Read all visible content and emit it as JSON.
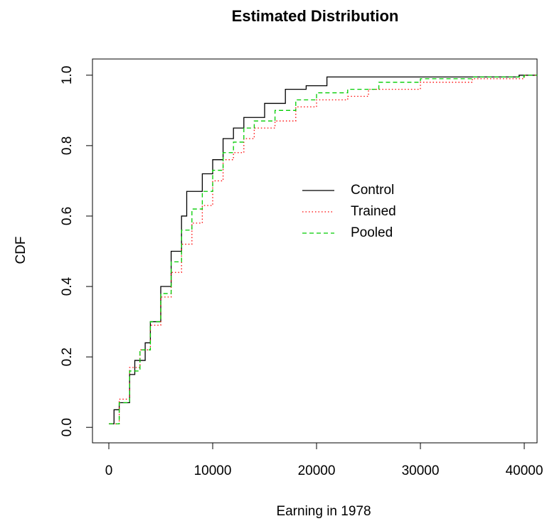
{
  "chart_data": {
    "type": "step",
    "title": "Estimated Distribution",
    "xlabel": "Earning in 1978",
    "ylabel": "CDF",
    "xlim": [
      -1575,
      41233
    ],
    "ylim": [
      -0.044,
      1.046
    ],
    "xticks": [
      0,
      10000,
      20000,
      30000,
      40000
    ],
    "yticks": [
      {
        "value": 0,
        "label": "0.0"
      },
      {
        "value": 0.2,
        "label": "0.2"
      },
      {
        "value": 0.4,
        "label": "0.4"
      },
      {
        "value": 0.6,
        "label": "0.6"
      },
      {
        "value": 0.8,
        "label": "0.8"
      },
      {
        "value": 1,
        "label": "1.0"
      }
    ],
    "legend_position": "center-right",
    "series": [
      {
        "name": "Control",
        "color": "#000000",
        "linestyle": "solid",
        "x": [
          0,
          500,
          1000,
          2000,
          2500,
          3500,
          4000,
          5000,
          6000,
          7000,
          7500,
          9000,
          10000,
          11000,
          12000,
          13000,
          15000,
          17000,
          19000,
          21000,
          39500
        ],
        "values": [
          0.01,
          0.05,
          0.07,
          0.15,
          0.19,
          0.24,
          0.3,
          0.4,
          0.5,
          0.6,
          0.67,
          0.72,
          0.76,
          0.82,
          0.85,
          0.88,
          0.92,
          0.96,
          0.97,
          0.995,
          1.0
        ]
      },
      {
        "name": "Trained",
        "color": "#ff0000",
        "linestyle": "dotted",
        "x": [
          0,
          1000,
          2000,
          3000,
          4000,
          5000,
          6000,
          7000,
          8000,
          9000,
          10000,
          11000,
          12000,
          13000,
          14000,
          16000,
          18000,
          20000,
          23000,
          25000,
          30000,
          35000,
          40000
        ],
        "values": [
          0.01,
          0.08,
          0.17,
          0.22,
          0.29,
          0.37,
          0.44,
          0.52,
          0.58,
          0.63,
          0.7,
          0.76,
          0.78,
          0.82,
          0.85,
          0.87,
          0.91,
          0.93,
          0.94,
          0.96,
          0.98,
          0.99,
          1.0
        ]
      },
      {
        "name": "Pooled",
        "color": "#00cc00",
        "linestyle": "dashed",
        "x": [
          0,
          1000,
          2000,
          3000,
          4000,
          5000,
          6000,
          7000,
          8000,
          9000,
          10000,
          11000,
          12000,
          13000,
          14000,
          16000,
          18000,
          20000,
          23000,
          26000,
          30000,
          35000,
          40000
        ],
        "values": [
          0.01,
          0.07,
          0.16,
          0.22,
          0.3,
          0.38,
          0.47,
          0.56,
          0.62,
          0.67,
          0.73,
          0.78,
          0.81,
          0.85,
          0.87,
          0.9,
          0.93,
          0.95,
          0.96,
          0.98,
          0.99,
          0.995,
          1.0
        ]
      }
    ]
  }
}
